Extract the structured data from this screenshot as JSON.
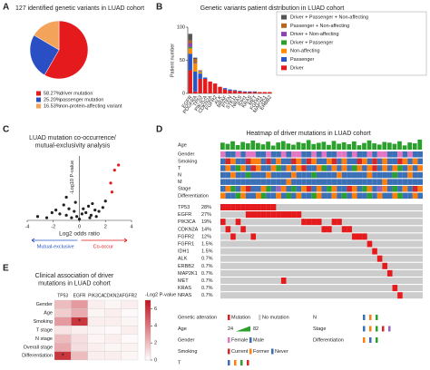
{
  "chart_data": [
    {
      "panel": "A",
      "type": "pie",
      "title": "127 identified genetic variants in LUAD cohort",
      "categories": [
        "driver mutation",
        "passenger mutation",
        "non-protein-affecting variant"
      ],
      "values": [
        58.27,
        25.2,
        16.53
      ],
      "value_labels": [
        "58.27%",
        "25.20%",
        "16.53%"
      ],
      "colors": [
        "#e41a1c",
        "#2a4fc4",
        "#f4a35a"
      ]
    },
    {
      "panel": "B",
      "type": "bar",
      "stacked": true,
      "title": "Genetic variants patient distribution in LUAD cohort",
      "y_label": "Patient number",
      "ylim": [
        0,
        100
      ],
      "yticks": [
        0,
        50,
        100
      ],
      "legend": "top-right",
      "categories": [
        "EGFR",
        "PDGFRA",
        "TP53",
        "PIK3CA",
        "CDKN2A",
        "FGFR2",
        "ALK",
        "BRAF",
        "PTEN",
        "STK11",
        "NRAS",
        "IDH1",
        "KRAS",
        "MET",
        "FGFR1",
        "MAP2K1",
        "ERBB2"
      ],
      "series": [
        {
          "name": "Driver + Passenger + Non-affecting",
          "color": "#555555",
          "values": [
            10,
            2,
            0,
            0,
            0,
            0,
            0,
            0,
            0,
            0,
            0,
            0,
            0,
            0,
            0,
            0,
            0
          ]
        },
        {
          "name": "Passenger + Non-affecting",
          "color": "#b5651d",
          "values": [
            4,
            6,
            1,
            0,
            0,
            0,
            0,
            0,
            0,
            0,
            0,
            0,
            0,
            0,
            0,
            0,
            0
          ]
        },
        {
          "name": "Driver + Non-affecting",
          "color": "#8e44ad",
          "values": [
            6,
            1,
            1,
            0,
            0,
            0,
            0,
            0,
            0,
            0,
            0,
            0,
            0,
            0,
            0,
            0,
            0
          ]
        },
        {
          "name": "Driver + Passenger",
          "color": "#2ca02c",
          "values": [
            2,
            0,
            1,
            0,
            0,
            0,
            0,
            0,
            0,
            0,
            0,
            0,
            0,
            0,
            0,
            0,
            0
          ]
        },
        {
          "name": "Non-affecting",
          "color": "#ff8c00",
          "values": [
            8,
            12,
            2,
            0,
            0,
            0,
            0,
            0,
            0,
            0,
            0,
            0,
            0,
            0,
            0,
            0,
            0
          ]
        },
        {
          "name": "Passenger",
          "color": "#2a55c8",
          "values": [
            25,
            30,
            8,
            2,
            0,
            0,
            0,
            2,
            2,
            1,
            1,
            1,
            1,
            1,
            0,
            0,
            0
          ]
        },
        {
          "name": "Driver",
          "color": "#e41a1c",
          "values": [
            35,
            3,
            22,
            22,
            18,
            15,
            10,
            6,
            4,
            4,
            3,
            2,
            2,
            2,
            2,
            2,
            2
          ]
        }
      ]
    },
    {
      "panel": "C",
      "type": "scatter",
      "title": [
        "LUAD mutation co-occurrence/",
        "mutual-exclusivity analysis"
      ],
      "x_label": "Log2 odds ratio",
      "y_label": "-Log10 P-value",
      "xlim": [
        -4,
        4
      ],
      "xticks": [
        -4,
        -2,
        0,
        2,
        4
      ],
      "ylim": [
        0,
        5
      ],
      "series": [
        {
          "color": "#222222",
          "x": [
            -3.2,
            -2.1,
            -1.8,
            -1.5,
            -1.2,
            -1.0,
            -0.8,
            -0.6,
            -0.4,
            -0.3,
            -0.2,
            0,
            0.2,
            0.3,
            0.5,
            0.7,
            0.9,
            1.0,
            1.2,
            1.5,
            1.8,
            2.0,
            -2.5,
            -1.0,
            0.8,
            1.3
          ],
          "values": [
            0.3,
            0.6,
            0.8,
            0.5,
            1.2,
            0.4,
            0.9,
            0.2,
            0.7,
            1.4,
            0.3,
            0.1,
            0.5,
            0.9,
            0.6,
            1.1,
            0.4,
            1.3,
            0.8,
            0.7,
            1.0,
            1.5,
            0.2,
            1.8,
            0.2,
            0.3
          ]
        },
        {
          "color": "#e41a1c",
          "x": [
            3.0,
            2.7,
            2.4,
            2.5
          ],
          "values": [
            4.3,
            3.9,
            2.9,
            2.2
          ]
        }
      ],
      "annotations": [
        {
          "text": "Mutual-exclusive",
          "color": "#2a55c8"
        },
        {
          "text": "Co-occur",
          "color": "#e41a1c"
        }
      ]
    },
    {
      "panel": "D",
      "type": "oncoprint",
      "title": "Heatmap of driver mutations in LUAD cohort",
      "age": {
        "name": "Age",
        "color": "#2ca02c",
        "ticks": [
          24,
          82
        ],
        "values": [
          62,
          55,
          70,
          48,
          66,
          58,
          74,
          60,
          52,
          68,
          45,
          63,
          71,
          57,
          50,
          65,
          59,
          77,
          54,
          61,
          67,
          49,
          72,
          56,
          64,
          53,
          69,
          47,
          60,
          75,
          58,
          51,
          66,
          62,
          55,
          70,
          46,
          63,
          58,
          80
        ]
      },
      "tracks": [
        {
          "name": "Gender",
          "legend": true,
          "items": [
            "Female",
            "Male"
          ],
          "colors": [
            "#e377c2",
            "#3b6fb6"
          ],
          "values": [
            0,
            1,
            1,
            0,
            1,
            0,
            0,
            1,
            1,
            0,
            1,
            1,
            0,
            1,
            0,
            0,
            1,
            1,
            0,
            1,
            0,
            1,
            1,
            0,
            0,
            1,
            0,
            1,
            1,
            0,
            1,
            0,
            0,
            1,
            1,
            0,
            1,
            0,
            1,
            1
          ]
        },
        {
          "name": "Smoking",
          "legend": true,
          "items": [
            "Current",
            "Former",
            "Never"
          ],
          "colors": [
            "#d62728",
            "#ff7f0e",
            "#3b6fb6"
          ],
          "values": [
            2,
            0,
            1,
            2,
            2,
            0,
            1,
            1,
            2,
            0,
            2,
            1,
            2,
            2,
            0,
            1,
            2,
            0,
            1,
            2,
            2,
            1,
            0,
            2,
            1,
            2,
            2,
            0,
            1,
            2,
            0,
            2,
            1,
            2,
            2,
            0,
            1,
            2,
            1,
            2
          ]
        },
        {
          "name": "T",
          "legend": true,
          "colors": [
            "#3b6fb6",
            "#ff7f0e",
            "#2ca02c",
            "#d62728"
          ],
          "values": [
            0,
            1,
            0,
            2,
            1,
            0,
            3,
            1,
            0,
            0,
            1,
            2,
            0,
            1,
            0,
            1,
            3,
            0,
            0,
            1,
            2,
            0,
            1,
            0,
            1,
            0,
            2,
            1,
            0,
            1,
            3,
            0,
            1,
            0,
            1,
            2,
            0,
            1,
            0,
            1
          ]
        },
        {
          "name": "N",
          "legend": true,
          "colors": [
            "#3b6fb6",
            "#ff7f0e",
            "#2ca02c"
          ],
          "values": [
            0,
            0,
            1,
            0,
            0,
            2,
            0,
            0,
            0,
            1,
            0,
            0,
            0,
            0,
            1,
            0,
            0,
            0,
            2,
            0,
            0,
            0,
            0,
            1,
            0,
            0,
            0,
            0,
            0,
            1,
            0,
            0,
            0,
            0,
            2,
            0,
            0,
            1,
            0,
            0
          ]
        },
        {
          "name": "M",
          "legend": false,
          "colors": [
            "#3b6fb6",
            "#ff7f0e"
          ],
          "values": [
            0,
            0,
            0,
            0,
            0,
            0,
            0,
            0,
            0,
            0,
            0,
            0,
            0,
            1,
            0,
            0,
            0,
            0,
            0,
            0,
            0,
            0,
            0,
            0,
            0,
            0,
            0,
            0,
            0,
            0,
            0,
            0,
            1,
            0,
            0,
            0,
            0,
            0,
            0,
            0
          ]
        },
        {
          "name": "Stage",
          "legend": true,
          "colors": [
            "#3b6fb6",
            "#ff7f0e",
            "#2ca02c",
            "#d62728",
            "#9467bd"
          ],
          "values": [
            0,
            1,
            2,
            0,
            1,
            3,
            0,
            0,
            1,
            2,
            0,
            4,
            1,
            0,
            2,
            0,
            1,
            3,
            0,
            1,
            0,
            2,
            1,
            0,
            0,
            3,
            1,
            0,
            2,
            1,
            0,
            4,
            1,
            0,
            2,
            0,
            1,
            0,
            3,
            1
          ]
        },
        {
          "name": "Differentiation",
          "legend": true,
          "colors": [
            "#ff7f0e",
            "#3b6fb6",
            "#2ca02c"
          ],
          "values": [
            0,
            1,
            1,
            2,
            0,
            1,
            1,
            0,
            2,
            1,
            1,
            0,
            1,
            2,
            1,
            0,
            1,
            1,
            2,
            0,
            1,
            1,
            0,
            1,
            2,
            1,
            0,
            1,
            1,
            2,
            1,
            0,
            1,
            1,
            0,
            2,
            1,
            1,
            0,
            1
          ]
        }
      ],
      "alteration": {
        "title": "Genetic alteration",
        "items": [
          "Mutation",
          "No mutation"
        ],
        "colors": [
          "#e41a1c",
          "#cccccc"
        ]
      },
      "genes": [
        {
          "name": "TP53",
          "value": 28,
          "value_label": "28%",
          "samples": [
            0,
            1,
            2,
            3,
            4,
            5,
            6,
            7,
            8,
            9,
            10
          ]
        },
        {
          "name": "EGFR",
          "value": 27,
          "value_label": "27%",
          "samples": [
            5,
            6,
            7,
            8,
            9,
            10,
            11,
            12,
            13,
            14,
            15
          ]
        },
        {
          "name": "PIK3CA",
          "value": 19,
          "value_label": "19%",
          "samples": [
            0,
            3,
            16,
            17,
            18,
            19,
            22,
            23
          ]
        },
        {
          "name": "CDKN2A",
          "value": 14,
          "value_label": "14%",
          "samples": [
            1,
            4,
            20,
            21,
            24,
            25
          ]
        },
        {
          "name": "FGFR2",
          "value": 12,
          "value_label": "12%",
          "samples": [
            2,
            6,
            26,
            27,
            28
          ]
        },
        {
          "name": "FGFR1",
          "value": 1.5,
          "value_label": "1.5%",
          "samples": [
            29
          ]
        },
        {
          "name": "IDH1",
          "value": 1.5,
          "value_label": "1.5%",
          "samples": [
            30
          ]
        },
        {
          "name": "ALK",
          "value": 0.7,
          "value_label": "0.7%",
          "samples": [
            31
          ]
        },
        {
          "name": "ERBB2",
          "value": 0.7,
          "value_label": "0.7%",
          "samples": [
            32
          ]
        },
        {
          "name": "MAP2K1",
          "value": 0.7,
          "value_label": "0.7%",
          "samples": [
            33
          ]
        },
        {
          "name": "MET",
          "value": 0.7,
          "value_label": "0.7%",
          "samples": [
            12
          ]
        },
        {
          "name": "KRAS",
          "value": 0.7,
          "value_label": "0.7%",
          "samples": [
            34
          ]
        },
        {
          "name": "NRAS",
          "value": 0.7,
          "value_label": "0.7%",
          "samples": [
            35
          ]
        }
      ]
    },
    {
      "panel": "E",
      "type": "heatmap",
      "title": [
        "Clinical association of driver",
        "mutations in LUAD cohort"
      ],
      "columns": [
        "TP53",
        "EGFR",
        "PIK3CA",
        "CDKN2A",
        "FGFR2"
      ],
      "rows": [
        "Gender",
        "Age",
        "Smoking",
        "T stage",
        "N stage",
        "Overall stage",
        "Differentiation"
      ],
      "values": [
        [
          2,
          3,
          0.5,
          0.3,
          0.5
        ],
        [
          1.5,
          2.5,
          0.3,
          0.5,
          0.2
        ],
        [
          3,
          6,
          0.5,
          0.5,
          0.3
        ],
        [
          0.8,
          0.5,
          0.3,
          0.2,
          0.5
        ],
        [
          2,
          1,
          0.3,
          0.5,
          0.2
        ],
        [
          2.5,
          1,
          0.5,
          0.3,
          0.4
        ],
        [
          6,
          2,
          0.5,
          0.5,
          0.3
        ]
      ],
      "cell_labels": [
        [
          null,
          null,
          null,
          null,
          null
        ],
        [
          null,
          null,
          null,
          null,
          null
        ],
        [
          null,
          "*",
          null,
          null,
          null
        ],
        [
          null,
          null,
          null,
          null,
          null
        ],
        [
          null,
          null,
          null,
          null,
          null
        ],
        [
          null,
          null,
          null,
          null,
          null
        ],
        [
          "*",
          null,
          null,
          null,
          null
        ]
      ],
      "colorbar_label": "-Log2 P-value",
      "ylim": [
        0,
        7
      ],
      "yticks": [
        0,
        2,
        4,
        6
      ],
      "colors": [
        "#ffffff",
        "#c0141e"
      ]
    }
  ]
}
